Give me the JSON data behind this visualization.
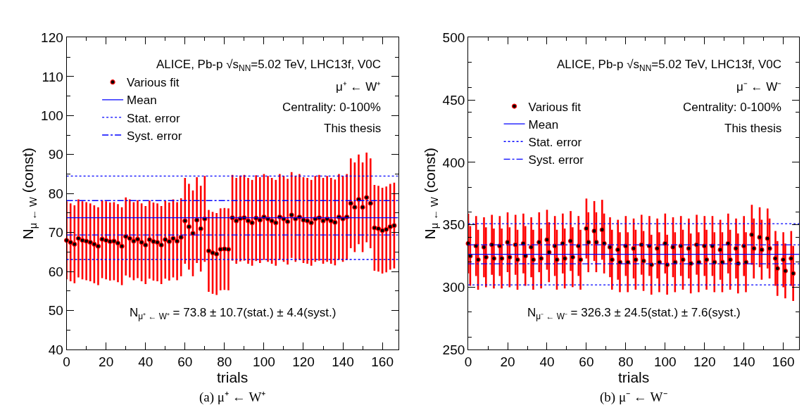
{
  "chart_data": [
    {
      "type": "scatter",
      "xlabel": "trials",
      "ylabel": "N$_{μ ← W}$ (const)",
      "xlim": [
        0,
        168
      ],
      "xticks": [
        0,
        20,
        40,
        60,
        80,
        100,
        120,
        140,
        160
      ],
      "ylim": [
        40,
        120
      ],
      "yticks": [
        40,
        50,
        60,
        70,
        80,
        90,
        100,
        110,
        120
      ],
      "legend": "top left",
      "marker": "circle",
      "series": [
        {
          "name": "Various fit",
          "color": "#ff0000",
          "x": [
            0,
            2,
            4,
            6,
            8,
            10,
            12,
            14,
            16,
            18,
            20,
            22,
            24,
            26,
            28,
            30,
            32,
            34,
            36,
            38,
            40,
            42,
            44,
            46,
            48,
            50,
            52,
            54,
            56,
            58,
            60,
            62,
            64,
            66,
            68,
            70,
            72,
            74,
            76,
            78,
            80,
            82,
            84,
            86,
            88,
            90,
            92,
            94,
            96,
            98,
            100,
            102,
            104,
            106,
            108,
            110,
            112,
            114,
            116,
            118,
            120,
            122,
            124,
            126,
            128,
            130,
            132,
            134,
            136,
            138,
            140,
            142,
            144,
            146,
            148,
            150,
            152,
            154,
            156,
            158,
            160,
            162,
            164,
            166
          ],
          "values": [
            68,
            67.5,
            67,
            68.5,
            68,
            67.8,
            67.5,
            67,
            66.5,
            68.3,
            68,
            67.7,
            67.8,
            67.3,
            66.5,
            69,
            68.5,
            67.8,
            68.3,
            67.5,
            66.8,
            68.2,
            67.7,
            67.5,
            66.8,
            68.2,
            67.7,
            68.5,
            67.8,
            68.8,
            73,
            71.5,
            69.8,
            73.2,
            71,
            73.5,
            65.3,
            64.8,
            64.5,
            65.7,
            65.8,
            65.7,
            73.8,
            73,
            73.6,
            73.8,
            73,
            72.5,
            73.7,
            73.2,
            74,
            73.5,
            73,
            72.5,
            74,
            73.5,
            72.8,
            74.5,
            73.5,
            74,
            73.2,
            73,
            72.5,
            73.5,
            73.8,
            73,
            73.5,
            73,
            72.6,
            74,
            73.5,
            74,
            77.5,
            76.5,
            78.5,
            76.5,
            79,
            77.5,
            71.2,
            71,
            70.5,
            70.8,
            71.5,
            71.8
          ],
          "errors": [
            10,
            10,
            10,
            10,
            10,
            10,
            10,
            10,
            10,
            10,
            10,
            10,
            10,
            10,
            10,
            10,
            10,
            10,
            10,
            10,
            10,
            10,
            10,
            10,
            10,
            10,
            10,
            10,
            10,
            10,
            11,
            11,
            11,
            11,
            11,
            11,
            10.5,
            10.5,
            10.5,
            10.5,
            10.5,
            10.5,
            11,
            11,
            11,
            11,
            11,
            11,
            11,
            11,
            11,
            11,
            11,
            11,
            11,
            11,
            11,
            11,
            11,
            11,
            11,
            11,
            11,
            11,
            11,
            11,
            11,
            11,
            11,
            11,
            11,
            11,
            11.5,
            11.5,
            11.5,
            11.5,
            11.5,
            11.5,
            11,
            11,
            11,
            11,
            11,
            11
          ]
        }
      ],
      "ref_lines": [
        {
          "axis": "y",
          "value": 73.8,
          "label": "Mean",
          "color": "#0000ff",
          "line_style": "solid"
        },
        {
          "axis": "y",
          "value": 84.5,
          "label": "Stat. error",
          "color": "#0000ff",
          "line_style": "dotted"
        },
        {
          "axis": "y",
          "value": 63.1,
          "label": null,
          "color": "#0000ff",
          "line_style": "dotted"
        },
        {
          "axis": "y",
          "value": 78.2,
          "label": "Syst. error",
          "color": "#0000ff",
          "line_style": "dashed"
        },
        {
          "axis": "y",
          "value": 69.4,
          "label": null,
          "color": "#0000ff",
          "line_style": "dashed"
        }
      ],
      "annotations": [
        "ALICE, Pb-p √s$_{NN}$=5.02 TeV, LHC13f, V0C",
        "μ⁺ ← W⁺",
        "Centrality: 0-100%",
        "This thesis",
        "N$_{μ⁺ ← W⁺}$ = 73.8 ± 10.7(stat.) ± 4.4(syst.)",
        "(a) μ⁺ ← W⁺"
      ]
    },
    {
      "type": "scatter",
      "xlabel": "trials",
      "ylabel": "N$_{μ ← W}$ (const)",
      "xlim": [
        0,
        168
      ],
      "xticks": [
        0,
        20,
        40,
        60,
        80,
        100,
        120,
        140,
        160
      ],
      "ylim": [
        250,
        500
      ],
      "yticks": [
        250,
        300,
        350,
        400,
        450,
        500
      ],
      "legend": "top left",
      "marker": "circle",
      "series": [
        {
          "name": "Various fit",
          "color": "#ff0000",
          "x": [
            0,
            1,
            4,
            5,
            8,
            9,
            12,
            13,
            16,
            17,
            20,
            21,
            24,
            25,
            28,
            29,
            32,
            33,
            36,
            37,
            40,
            41,
            44,
            45,
            48,
            49,
            52,
            53,
            56,
            57,
            60,
            61,
            64,
            65,
            68,
            69,
            72,
            73,
            76,
            77,
            80,
            81,
            84,
            85,
            88,
            89,
            92,
            93,
            96,
            97,
            100,
            101,
            104,
            105,
            108,
            109,
            112,
            113,
            116,
            117,
            120,
            121,
            124,
            125,
            128,
            129,
            132,
            133,
            136,
            137,
            140,
            141,
            144,
            145,
            148,
            149,
            152,
            153,
            156,
            157,
            160,
            161,
            164,
            165
          ],
          "values": [
            335,
            325,
            333,
            322,
            332,
            324,
            334,
            323,
            333,
            323,
            336,
            324,
            334,
            322,
            335,
            325,
            332,
            322,
            336,
            323,
            338,
            328,
            333,
            322,
            335,
            323,
            337,
            324,
            333,
            322,
            347,
            336,
            345,
            336,
            346,
            335,
            332,
            322,
            330,
            320,
            333,
            320,
            331,
            322,
            334,
            321,
            333,
            318,
            331,
            320,
            335,
            318,
            332,
            320,
            333,
            322,
            331,
            319,
            334,
            320,
            333,
            322,
            333,
            320,
            330,
            320,
            335,
            322,
            331,
            319,
            333,
            320,
            342,
            331,
            340,
            330,
            339,
            331,
            323,
            315,
            322,
            313,
            323,
            311
          ],
          "errors": [
            24,
            24,
            24,
            24,
            24,
            24,
            24,
            24,
            24,
            24,
            24,
            24,
            24,
            24,
            24,
            24,
            24,
            24,
            24,
            24,
            24,
            24,
            24,
            24,
            24,
            24,
            24,
            24,
            24,
            24,
            24,
            24,
            24,
            24,
            24,
            24,
            24,
            24,
            24,
            24,
            24,
            24,
            24,
            24,
            24,
            24,
            24,
            24,
            24,
            24,
            24,
            24,
            24,
            24,
            24,
            24,
            24,
            24,
            24,
            24,
            24,
            24,
            24,
            24,
            24,
            24,
            24,
            24,
            24,
            24,
            24,
            24,
            24,
            24,
            24,
            24,
            24,
            24,
            22,
            22,
            22,
            22,
            22,
            22
          ]
        }
      ],
      "ref_lines": [
        {
          "axis": "y",
          "value": 326.3,
          "label": "Mean",
          "color": "#0000ff",
          "line_style": "solid"
        },
        {
          "axis": "y",
          "value": 350.8,
          "label": "Stat. error",
          "color": "#0000ff",
          "line_style": "dotted"
        },
        {
          "axis": "y",
          "value": 301.8,
          "label": null,
          "color": "#0000ff",
          "line_style": "dotted"
        },
        {
          "axis": "y",
          "value": 333.9,
          "label": "Syst. error",
          "color": "#0000ff",
          "line_style": "dashed"
        },
        {
          "axis": "y",
          "value": 318.7,
          "label": null,
          "color": "#0000ff",
          "line_style": "dashed"
        }
      ],
      "annotations": [
        "ALICE, Pb-p √s$_{NN}$=5.02 TeV, LHC13f, V0C",
        "μ⁻ ← W⁻",
        "Centrality: 0-100%",
        "This thesis",
        "N$_{μ⁻ ← W⁻}$ = 326.3 ± 24.5(stat.) ± 7.6(syst.)",
        "(b) μ⁻ ← W⁻"
      ]
    }
  ]
}
